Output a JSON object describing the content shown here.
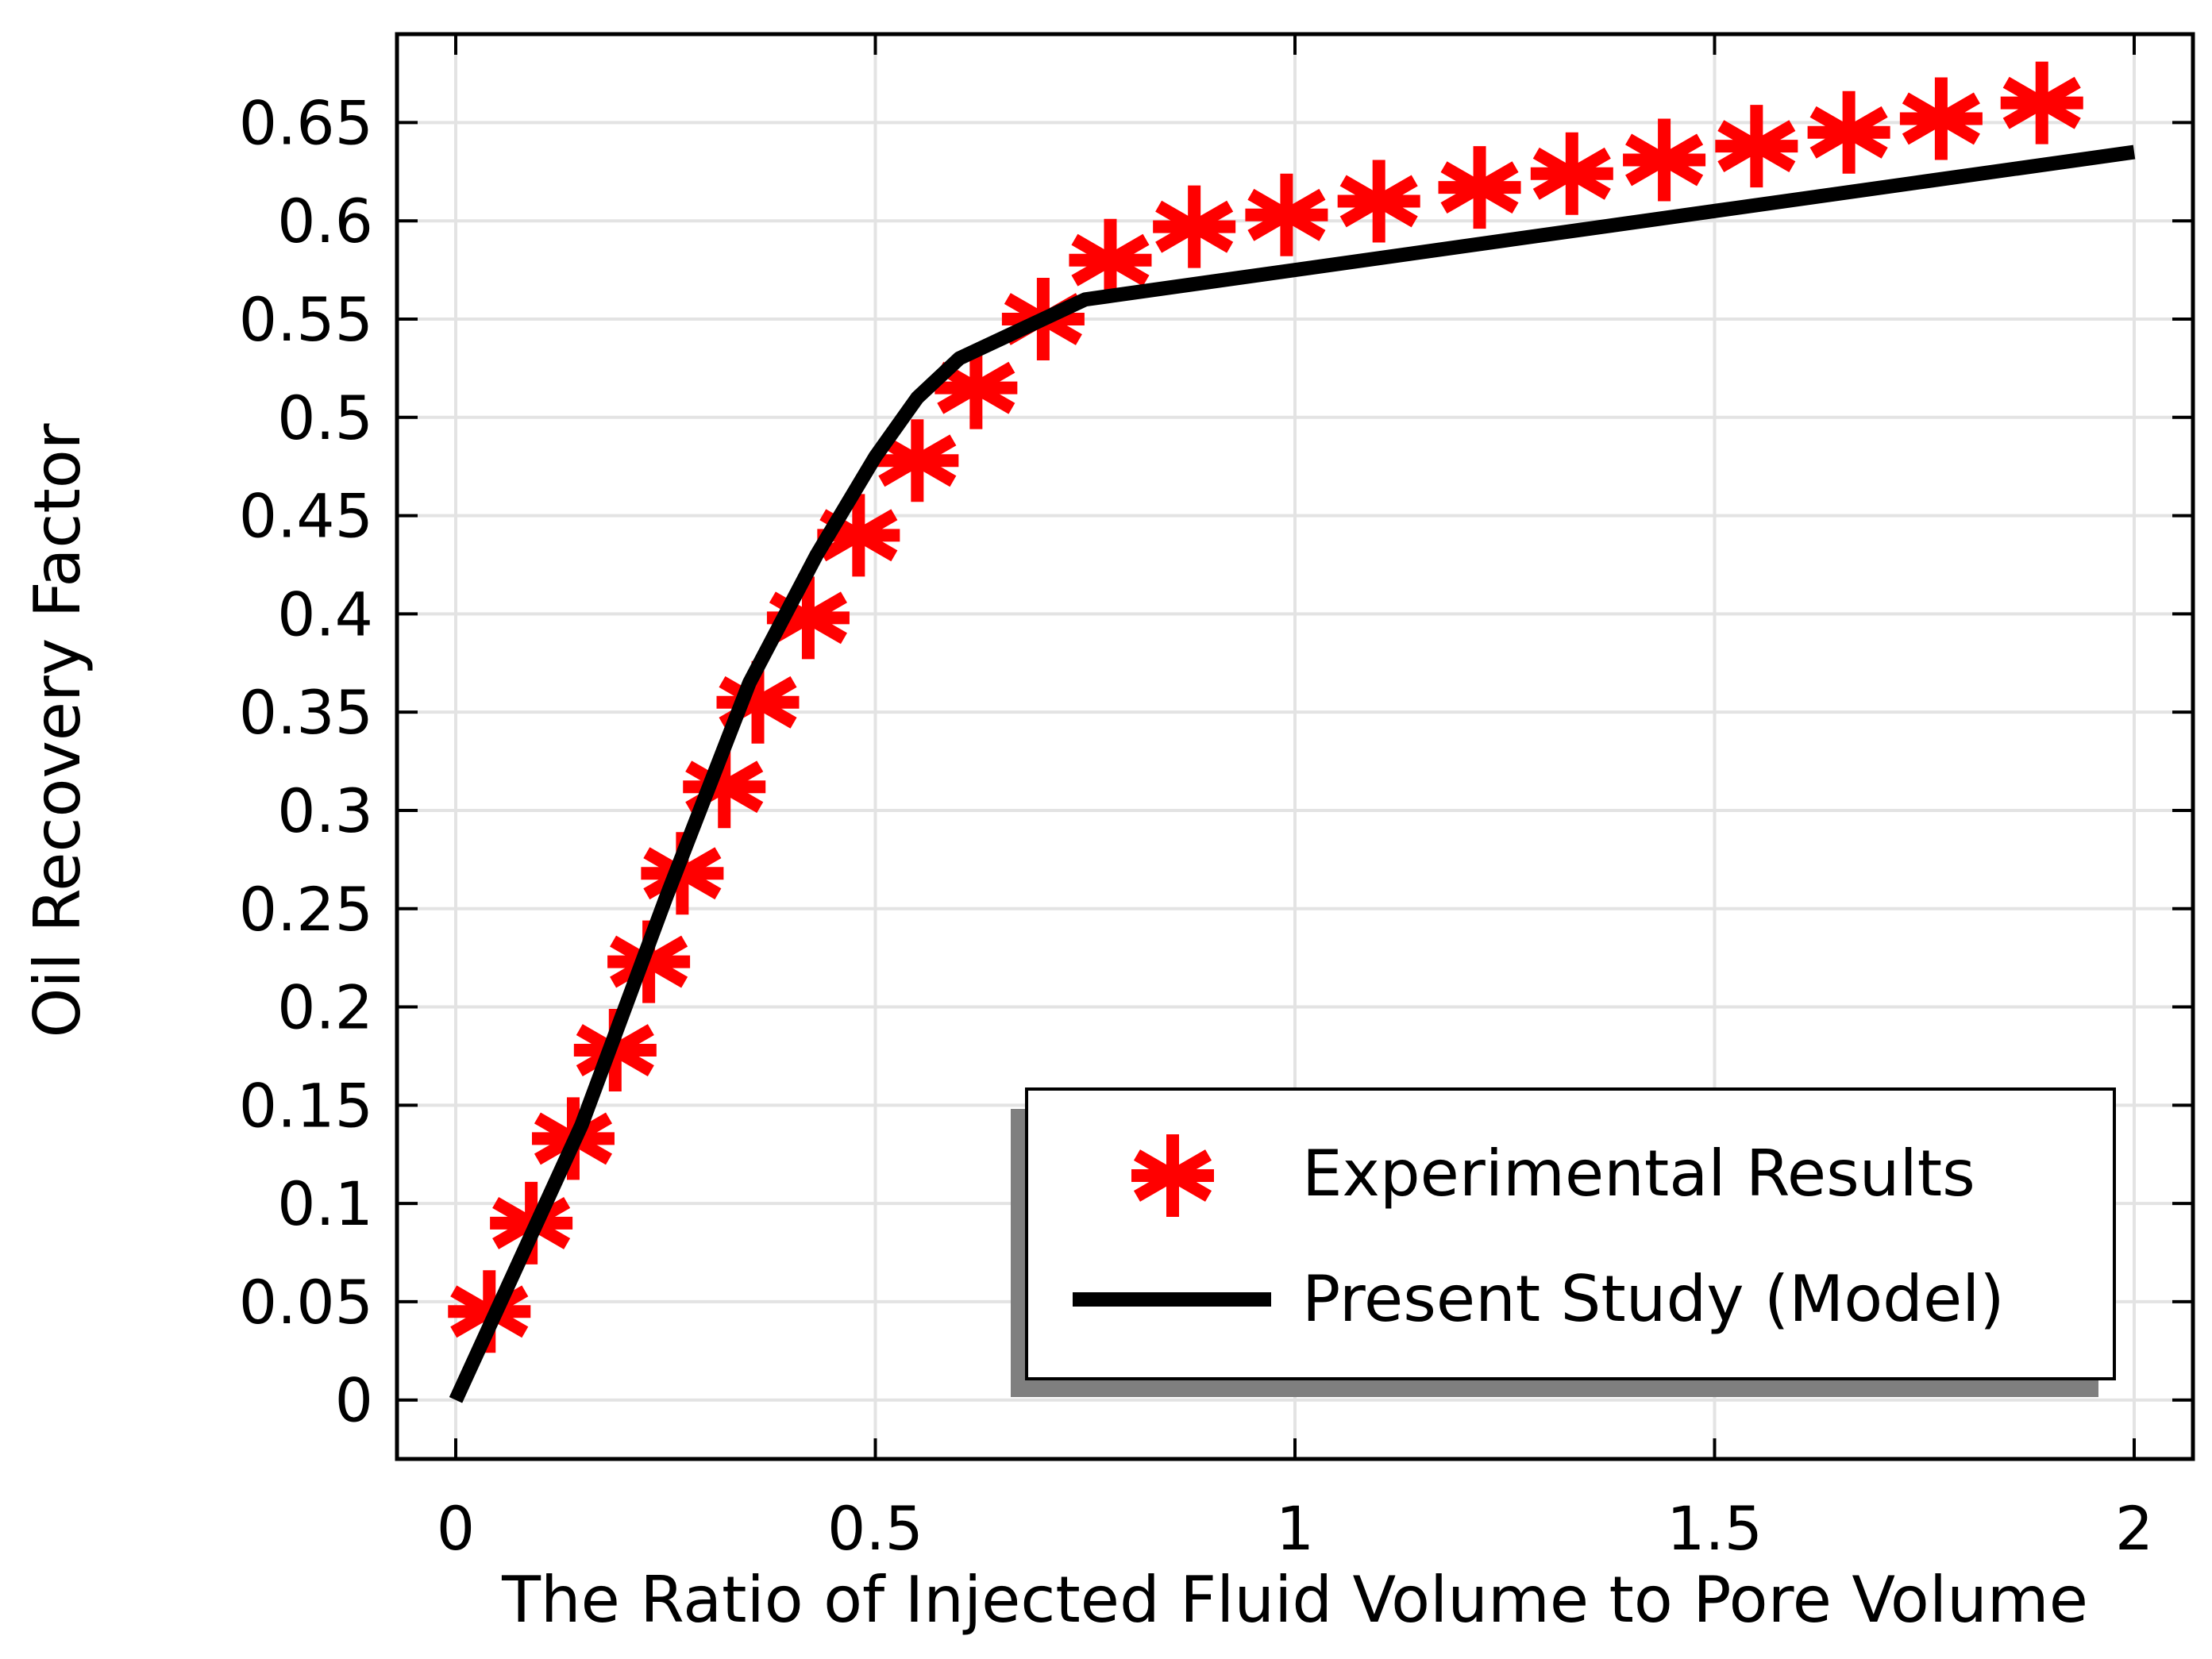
{
  "chart_data": {
    "type": "line",
    "title": "",
    "xlabel": "The Ratio of Injected Fluid Volume to Pore Volume",
    "ylabel": "Oil Recovery Factor",
    "xlim": [
      -0.07,
      2.07
    ],
    "ylim": [
      -0.03,
      0.695
    ],
    "xticks": [
      0,
      0.5,
      1,
      1.5,
      2
    ],
    "xtick_labels": [
      "0",
      "0.5",
      "1",
      "1.5",
      "2"
    ],
    "yticks": [
      0,
      0.05,
      0.1,
      0.15,
      0.2,
      0.25,
      0.3,
      0.35,
      0.4,
      0.45,
      0.5,
      0.55,
      0.6,
      0.65
    ],
    "ytick_labels": [
      "0",
      "0.05",
      "0.1",
      "0.15",
      "0.2",
      "0.25",
      "0.3",
      "0.35",
      "0.4",
      "0.45",
      "0.5",
      "0.55",
      "0.6",
      "0.65"
    ],
    "grid": true,
    "legend_position": "bottom-right",
    "series": [
      {
        "name": "Experimental Results",
        "kind": "scatter",
        "marker": "asterisk",
        "color": "#ff0000",
        "x": [
          0.04,
          0.09,
          0.14,
          0.19,
          0.23,
          0.27,
          0.32,
          0.36,
          0.42,
          0.48,
          0.55,
          0.62,
          0.7,
          0.78,
          0.88,
          0.99,
          1.1,
          1.22,
          1.33,
          1.44,
          1.55,
          1.66,
          1.77,
          1.89
        ],
        "y": [
          0.045,
          0.09,
          0.133,
          0.178,
          0.223,
          0.268,
          0.312,
          0.355,
          0.398,
          0.44,
          0.478,
          0.515,
          0.55,
          0.58,
          0.597,
          0.603,
          0.61,
          0.617,
          0.624,
          0.631,
          0.638,
          0.645,
          0.652,
          0.66
        ]
      },
      {
        "name": "Present Study (Model)",
        "kind": "line",
        "color": "#000000",
        "x": [
          0,
          0.15,
          0.25,
          0.35,
          0.43,
          0.5,
          0.55,
          0.6,
          0.75,
          1.0,
          1.25,
          1.5,
          1.75,
          2.0
        ],
        "y": [
          0,
          0.14,
          0.255,
          0.365,
          0.43,
          0.48,
          0.51,
          0.53,
          0.56,
          0.575,
          0.59,
          0.605,
          0.62,
          0.635
        ]
      }
    ]
  }
}
